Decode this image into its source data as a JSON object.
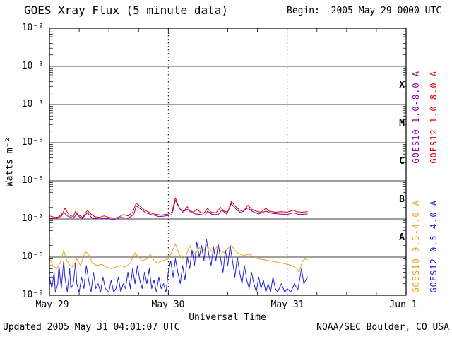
{
  "header": {
    "title": "GOES Xray Flux (5 minute data)",
    "begin_label": "Begin:  2005 May 29 0000 UTC"
  },
  "footer": {
    "updated": "Updated 2005 May 31 04:01:07 UTC",
    "credit": "NOAA/SEC Boulder, CO USA"
  },
  "chart_data": {
    "type": "line",
    "title": "GOES Xray Flux (5 minute data)",
    "xlabel": "Universal Time",
    "ylabel": "Watts m⁻²",
    "x_unit": "days since 2005 May 29 0000 UTC",
    "xlim": [
      0,
      3
    ],
    "ylim_exp": [
      -2,
      -9
    ],
    "xticks": {
      "positions": [
        0,
        1,
        2,
        3
      ],
      "labels": [
        "May 29",
        "May 30",
        "May 31",
        "Jun 1"
      ]
    },
    "ytick_labels": [
      "10⁻²",
      "10⁻³",
      "10⁻⁴",
      "10⁻⁵",
      "10⁻⁶",
      "10⁻⁷",
      "10⁻⁸",
      "10⁻⁹"
    ],
    "ytick_exponents": [
      -2,
      -3,
      -4,
      -5,
      -6,
      -7,
      -8,
      -9
    ],
    "flare_classes": {
      "labels": [
        "X",
        "M",
        "C",
        "B",
        "A"
      ],
      "band_center_exponents": [
        -3.5,
        -4.5,
        -5.5,
        -6.5,
        -7.5
      ]
    },
    "grid": {
      "h_major_exponents": [
        -3,
        -4,
        -5,
        -6,
        -7,
        -8
      ],
      "v_dotted_positions": [
        1,
        2
      ],
      "x_minor_step_days": 0.25
    },
    "legend": [
      {
        "label": "GOES10 1.0-8.0 A",
        "color": "#8800aa"
      },
      {
        "label": "GOES12 1.0-8.0 A",
        "color": "#dd0000"
      },
      {
        "label": "GOES10 0.5-4.0 A",
        "color": "#eaa221"
      },
      {
        "label": "GOES12 0.5-4.0 A",
        "color": "#2222dd"
      }
    ],
    "series": [
      {
        "name": "GOES10 1.0-8.0 A",
        "color": "#8800aa",
        "points": [
          [
            0,
            1.05e-07
          ],
          [
            0.06,
            1e-07
          ],
          [
            0.12,
            1.5e-07
          ],
          [
            0.15,
            1.2e-07
          ],
          [
            0.2,
            1.05e-07
          ],
          [
            0.23,
            1.35e-07
          ],
          [
            0.27,
            1e-07
          ],
          [
            0.32,
            1.45e-07
          ],
          [
            0.36,
            1.05e-07
          ],
          [
            0.42,
            1e-07
          ],
          [
            0.48,
            1.05e-07
          ],
          [
            0.54,
            9.5e-08
          ],
          [
            0.6,
            1.1e-07
          ],
          [
            0.66,
            1.05e-07
          ],
          [
            0.71,
            1.3e-07
          ],
          [
            0.73,
            2.2e-07
          ],
          [
            0.77,
            1.8e-07
          ],
          [
            0.81,
            1.45e-07
          ],
          [
            0.86,
            1.3e-07
          ],
          [
            0.92,
            1.15e-07
          ],
          [
            0.98,
            1.2e-07
          ],
          [
            1.03,
            1.3e-07
          ],
          [
            1.06,
            3.1e-07
          ],
          [
            1.09,
            2e-07
          ],
          [
            1.12,
            1.5e-07
          ],
          [
            1.16,
            1.8e-07
          ],
          [
            1.19,
            1.5e-07
          ],
          [
            1.23,
            1.35e-07
          ],
          [
            1.27,
            1.3e-07
          ],
          [
            1.31,
            1.25e-07
          ],
          [
            1.33,
            1.6e-07
          ],
          [
            1.37,
            1.3e-07
          ],
          [
            1.42,
            1.3e-07
          ],
          [
            1.45,
            1.7e-07
          ],
          [
            1.49,
            1.35e-07
          ],
          [
            1.53,
            2.5e-07
          ],
          [
            1.57,
            1.8e-07
          ],
          [
            1.61,
            1.45e-07
          ],
          [
            1.67,
            1.95e-07
          ],
          [
            1.71,
            1.55e-07
          ],
          [
            1.76,
            1.35e-07
          ],
          [
            1.82,
            1.6e-07
          ],
          [
            1.87,
            1.4e-07
          ],
          [
            1.93,
            1.35e-07
          ],
          [
            2,
            1.3e-07
          ],
          [
            2.05,
            1.45e-07
          ],
          [
            2.1,
            1.3e-07
          ],
          [
            2.17,
            1.35e-07
          ]
        ]
      },
      {
        "name": "GOES12 1.0-8.0 A",
        "color": "#dd0000",
        "points": [
          [
            0,
            1.2e-07
          ],
          [
            0.05,
            1.1e-07
          ],
          [
            0.1,
            1.15e-07
          ],
          [
            0.13,
            1.9e-07
          ],
          [
            0.15,
            1.5e-07
          ],
          [
            0.17,
            1.25e-07
          ],
          [
            0.2,
            1.15e-07
          ],
          [
            0.22,
            1.6e-07
          ],
          [
            0.24,
            1.3e-07
          ],
          [
            0.28,
            1.1e-07
          ],
          [
            0.32,
            1.7e-07
          ],
          [
            0.34,
            1.4e-07
          ],
          [
            0.38,
            1.15e-07
          ],
          [
            0.42,
            1.1e-07
          ],
          [
            0.46,
            1.2e-07
          ],
          [
            0.5,
            1.1e-07
          ],
          [
            0.54,
            1.05e-07
          ],
          [
            0.58,
            1.1e-07
          ],
          [
            0.62,
            1.3e-07
          ],
          [
            0.66,
            1.2e-07
          ],
          [
            0.7,
            1.5e-07
          ],
          [
            0.73,
            2.6e-07
          ],
          [
            0.76,
            2.2e-07
          ],
          [
            0.79,
            1.8e-07
          ],
          [
            0.82,
            1.6e-07
          ],
          [
            0.85,
            1.45e-07
          ],
          [
            0.88,
            1.35e-07
          ],
          [
            0.91,
            1.3e-07
          ],
          [
            0.94,
            1.25e-07
          ],
          [
            0.97,
            1.3e-07
          ],
          [
            1,
            1.35e-07
          ],
          [
            1.03,
            1.5e-07
          ],
          [
            1.06,
            3.6e-07
          ],
          [
            1.08,
            2.4e-07
          ],
          [
            1.1,
            1.8e-07
          ],
          [
            1.13,
            1.6e-07
          ],
          [
            1.16,
            2.1e-07
          ],
          [
            1.18,
            1.7e-07
          ],
          [
            1.21,
            1.5e-07
          ],
          [
            1.24,
            1.8e-07
          ],
          [
            1.27,
            1.5e-07
          ],
          [
            1.3,
            1.4e-07
          ],
          [
            1.33,
            1.9e-07
          ],
          [
            1.36,
            1.5e-07
          ],
          [
            1.4,
            1.45e-07
          ],
          [
            1.44,
            2e-07
          ],
          [
            1.47,
            1.6e-07
          ],
          [
            1.5,
            1.5e-07
          ],
          [
            1.53,
            2.9e-07
          ],
          [
            1.56,
            2.2e-07
          ],
          [
            1.6,
            1.7e-07
          ],
          [
            1.63,
            1.55e-07
          ],
          [
            1.67,
            2.3e-07
          ],
          [
            1.7,
            1.8e-07
          ],
          [
            1.74,
            1.6e-07
          ],
          [
            1.78,
            1.5e-07
          ],
          [
            1.82,
            1.9e-07
          ],
          [
            1.85,
            1.6e-07
          ],
          [
            1.9,
            1.5e-07
          ],
          [
            1.95,
            1.55e-07
          ],
          [
            2,
            1.5e-07
          ],
          [
            2.05,
            1.7e-07
          ],
          [
            2.08,
            1.55e-07
          ],
          [
            2.12,
            1.5e-07
          ],
          [
            2.17,
            1.55e-07
          ]
        ]
      },
      {
        "name": "GOES10 0.5-4.0 A",
        "color": "#eaa221",
        "points": [
          [
            0,
            9e-09
          ],
          [
            0.03,
            6e-09
          ],
          [
            0.06,
            5e-09
          ],
          [
            0.09,
            7e-09
          ],
          [
            0.12,
            1.5e-08
          ],
          [
            0.14,
            9e-09
          ],
          [
            0.17,
            6e-09
          ],
          [
            0.2,
            5.5e-09
          ],
          [
            0.23,
            9e-09
          ],
          [
            0.26,
            6e-09
          ],
          [
            0.3,
            1.4e-08
          ],
          [
            0.33,
            1.2e-08
          ],
          [
            0.36,
            7e-09
          ],
          [
            0.4,
            6e-09
          ],
          [
            0.44,
            6.5e-09
          ],
          [
            0.48,
            5.5e-09
          ],
          [
            0.52,
            5e-09
          ],
          [
            0.56,
            5.5e-09
          ],
          [
            0.6,
            6e-09
          ],
          [
            0.64,
            5.5e-09
          ],
          [
            0.68,
            7e-09
          ],
          [
            0.72,
            1.3e-08
          ],
          [
            0.75,
            1e-08
          ],
          [
            0.78,
            8e-09
          ],
          [
            0.82,
            9e-09
          ],
          [
            0.85,
            1.2e-08
          ],
          [
            0.88,
            8e-09
          ],
          [
            0.91,
            7e-09
          ],
          [
            0.95,
            8e-09
          ],
          [
            1,
            9e-09
          ],
          [
            1.04,
            1.6e-08
          ],
          [
            1.06,
            2.2e-08
          ],
          [
            1.09,
            1.2e-08
          ],
          [
            1.12,
            9e-09
          ],
          [
            1.15,
            1.1e-08
          ],
          [
            1.18,
            2e-08
          ],
          [
            1.2,
            1.4e-08
          ],
          [
            1.23,
            1.2e-08
          ],
          [
            1.26,
            1.8e-08
          ],
          [
            1.29,
            1.3e-08
          ],
          [
            1.32,
            2.1e-08
          ],
          [
            1.35,
            1.6e-08
          ],
          [
            1.38,
            1.3e-08
          ],
          [
            1.41,
            1.9e-08
          ],
          [
            1.44,
            1.5e-08
          ],
          [
            1.47,
            1.3e-08
          ],
          [
            1.5,
            1.7e-08
          ],
          [
            1.53,
            2e-08
          ],
          [
            1.56,
            1.5e-08
          ],
          [
            1.6,
            1.2e-08
          ],
          [
            1.64,
            1.1e-08
          ],
          [
            1.68,
            1.2e-08
          ],
          [
            1.72,
            1e-08
          ],
          [
            1.76,
            9e-09
          ],
          [
            1.8,
            8.5e-09
          ],
          [
            1.85,
            8e-09
          ],
          [
            1.9,
            7.5e-09
          ],
          [
            1.95,
            7e-09
          ],
          [
            2,
            6.5e-09
          ],
          [
            2.04,
            6e-09
          ],
          [
            2.08,
            5e-09
          ],
          [
            2.1,
            4e-09
          ],
          [
            2.13,
            8e-09
          ],
          [
            2.15,
            9e-09
          ],
          [
            2.17,
            8.5e-09
          ]
        ]
      },
      {
        "name": "GOES12 0.5-4.0 A",
        "color": "#2222dd",
        "points": [
          [
            0,
            3e-09
          ],
          [
            0.02,
            1.5e-09
          ],
          [
            0.04,
            4e-09
          ],
          [
            0.05,
            1.2e-09
          ],
          [
            0.07,
            2e-09
          ],
          [
            0.08,
            6e-09
          ],
          [
            0.1,
            1.5e-09
          ],
          [
            0.12,
            8e-09
          ],
          [
            0.13,
            3e-09
          ],
          [
            0.15,
            1.2e-09
          ],
          [
            0.17,
            5e-09
          ],
          [
            0.18,
            1.5e-09
          ],
          [
            0.2,
            2e-09
          ],
          [
            0.22,
            7e-09
          ],
          [
            0.23,
            2e-09
          ],
          [
            0.25,
            1.2e-09
          ],
          [
            0.27,
            3e-09
          ],
          [
            0.29,
            1.5e-09
          ],
          [
            0.31,
            6e-09
          ],
          [
            0.33,
            2.5e-09
          ],
          [
            0.35,
            1.2e-09
          ],
          [
            0.37,
            4e-09
          ],
          [
            0.39,
            1.5e-09
          ],
          [
            0.41,
            2e-09
          ],
          [
            0.43,
            1.2e-09
          ],
          [
            0.45,
            3e-09
          ],
          [
            0.47,
            1.5e-09
          ],
          [
            0.5,
            1.2e-09
          ],
          [
            0.52,
            2.5e-09
          ],
          [
            0.54,
            1.2e-09
          ],
          [
            0.56,
            1.5e-09
          ],
          [
            0.58,
            3e-09
          ],
          [
            0.6,
            1.2e-09
          ],
          [
            0.62,
            2e-09
          ],
          [
            0.64,
            1.5e-09
          ],
          [
            0.66,
            4e-09
          ],
          [
            0.68,
            1.5e-09
          ],
          [
            0.7,
            5e-09
          ],
          [
            0.72,
            2e-09
          ],
          [
            0.74,
            6e-09
          ],
          [
            0.76,
            2.5e-09
          ],
          [
            0.78,
            1.5e-09
          ],
          [
            0.8,
            4e-09
          ],
          [
            0.82,
            2e-09
          ],
          [
            0.84,
            5e-09
          ],
          [
            0.86,
            1.5e-09
          ],
          [
            0.88,
            2.5e-09
          ],
          [
            0.9,
            1.2e-09
          ],
          [
            0.92,
            3e-09
          ],
          [
            0.94,
            1.5e-09
          ],
          [
            0.96,
            2e-09
          ],
          [
            0.98,
            1.2e-09
          ],
          [
            1,
            4e-09
          ],
          [
            1.02,
            8e-09
          ],
          [
            1.04,
            3e-09
          ],
          [
            1.06,
            9e-09
          ],
          [
            1.08,
            4e-09
          ],
          [
            1.1,
            2e-09
          ],
          [
            1.12,
            6e-09
          ],
          [
            1.14,
            2.5e-09
          ],
          [
            1.16,
            1e-08
          ],
          [
            1.18,
            5e-09
          ],
          [
            1.2,
            1.5e-08
          ],
          [
            1.22,
            6e-09
          ],
          [
            1.24,
            2.5e-08
          ],
          [
            1.26,
            1e-08
          ],
          [
            1.28,
            2e-08
          ],
          [
            1.3,
            8e-09
          ],
          [
            1.32,
            3e-08
          ],
          [
            1.34,
            1.2e-08
          ],
          [
            1.36,
            6e-09
          ],
          [
            1.38,
            1.8e-08
          ],
          [
            1.4,
            8e-09
          ],
          [
            1.42,
            2.2e-08
          ],
          [
            1.44,
            9e-09
          ],
          [
            1.46,
            4e-09
          ],
          [
            1.48,
            1.5e-08
          ],
          [
            1.5,
            6e-09
          ],
          [
            1.52,
            2e-08
          ],
          [
            1.54,
            8e-09
          ],
          [
            1.56,
            3e-09
          ],
          [
            1.58,
            1e-08
          ],
          [
            1.6,
            4e-09
          ],
          [
            1.62,
            2e-09
          ],
          [
            1.64,
            6e-09
          ],
          [
            1.66,
            2.5e-09
          ],
          [
            1.68,
            1.5e-09
          ],
          [
            1.7,
            4e-09
          ],
          [
            1.72,
            2e-09
          ],
          [
            1.74,
            1.2e-09
          ],
          [
            1.76,
            3e-09
          ],
          [
            1.78,
            1.5e-09
          ],
          [
            1.8,
            2.5e-09
          ],
          [
            1.82,
            1.2e-09
          ],
          [
            1.84,
            2e-09
          ],
          [
            1.86,
            1.2e-09
          ],
          [
            1.88,
            3e-09
          ],
          [
            1.9,
            1.5e-09
          ],
          [
            1.92,
            1.2e-09
          ],
          [
            1.95,
            2e-09
          ],
          [
            1.98,
            1.2e-09
          ],
          [
            2,
            1.5e-09
          ],
          [
            2.03,
            1.2e-09
          ],
          [
            2.06,
            2e-09
          ],
          [
            2.09,
            1.4e-09
          ],
          [
            2.12,
            5e-09
          ],
          [
            2.14,
            2e-09
          ],
          [
            2.17,
            3e-09
          ]
        ]
      }
    ]
  }
}
